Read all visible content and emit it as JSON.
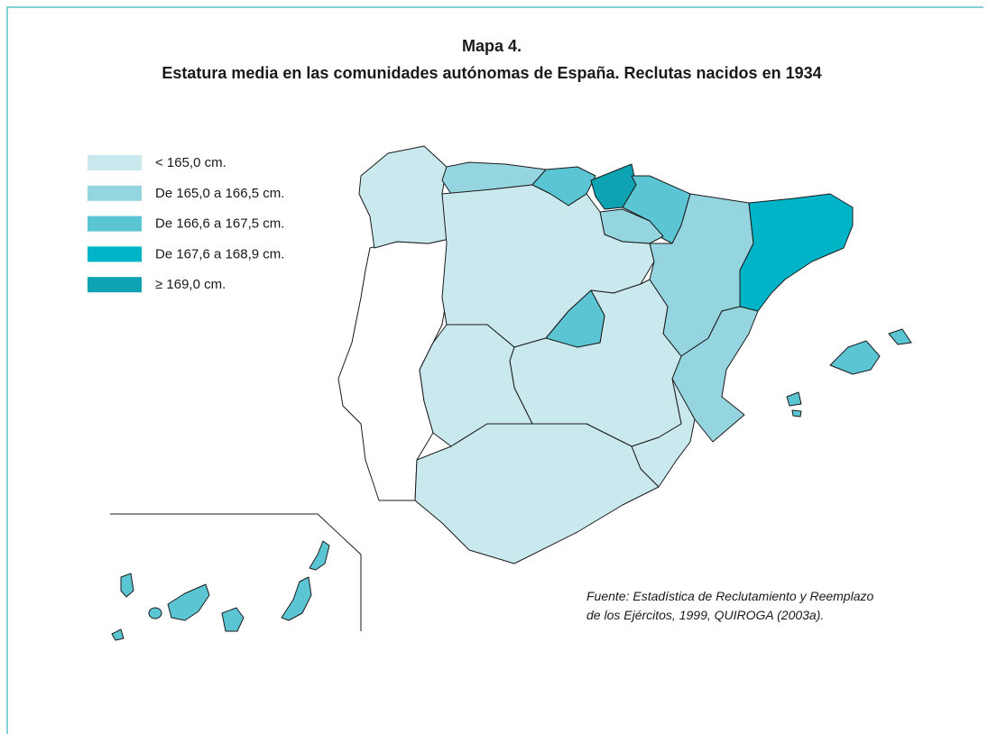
{
  "header": {
    "title": "Mapa 4.",
    "subtitle": "Estatura media en las comunidades autónomas de España. Reclutas nacidos en 1934"
  },
  "legend": [
    {
      "label": "< 165,0 cm.",
      "color": "#c9e9ee"
    },
    {
      "label": "De 165,0 a 166,5 cm.",
      "color": "#95d5df"
    },
    {
      "label": "De 166,6 a 167,5 cm.",
      "color": "#5cc5d3"
    },
    {
      "label": "De 167,6 a 168,9 cm.",
      "color": "#00b4c8"
    },
    {
      "label": "≥ 169,0 cm.",
      "color": "#0ea3b3"
    }
  ],
  "source": [
    "Fuente: Estadística de Reclutamiento y Reemplazo",
    "de los Ejércitos, 1999, QUIROGA (2003a)."
  ]
}
